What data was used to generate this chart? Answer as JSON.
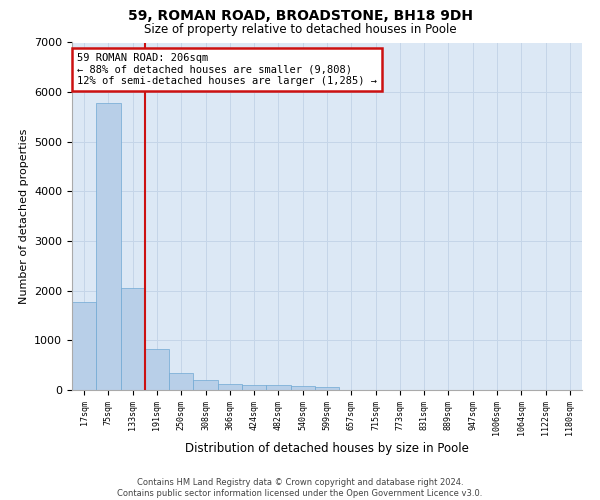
{
  "title": "59, ROMAN ROAD, BROADSTONE, BH18 9DH",
  "subtitle": "Size of property relative to detached houses in Poole",
  "xlabel": "Distribution of detached houses by size in Poole",
  "ylabel": "Number of detached properties",
  "footer_line1": "Contains HM Land Registry data © Crown copyright and database right 2024.",
  "footer_line2": "Contains public sector information licensed under the Open Government Licence v3.0.",
  "annotation_line1": "59 ROMAN ROAD: 206sqm",
  "annotation_line2": "← 88% of detached houses are smaller (9,808)",
  "annotation_line3": "12% of semi-detached houses are larger (1,285) →",
  "bar_color": "#b8cfe8",
  "bar_edge_color": "#6fa8d4",
  "vline_color": "#cc1111",
  "annotation_box_color": "#cc1111",
  "background_color": "#dce8f5",
  "grid_color": "#c5d5e8",
  "categories": [
    "17sqm",
    "75sqm",
    "133sqm",
    "191sqm",
    "250sqm",
    "308sqm",
    "366sqm",
    "424sqm",
    "482sqm",
    "540sqm",
    "599sqm",
    "657sqm",
    "715sqm",
    "773sqm",
    "831sqm",
    "889sqm",
    "947sqm",
    "1006sqm",
    "1064sqm",
    "1122sqm",
    "1180sqm"
  ],
  "values": [
    1780,
    5780,
    2060,
    820,
    340,
    195,
    120,
    105,
    95,
    80,
    70,
    0,
    0,
    0,
    0,
    0,
    0,
    0,
    0,
    0,
    0
  ],
  "ylim": [
    0,
    7000
  ],
  "yticks": [
    0,
    1000,
    2000,
    3000,
    4000,
    5000,
    6000,
    7000
  ],
  "vline_x": 2.5
}
